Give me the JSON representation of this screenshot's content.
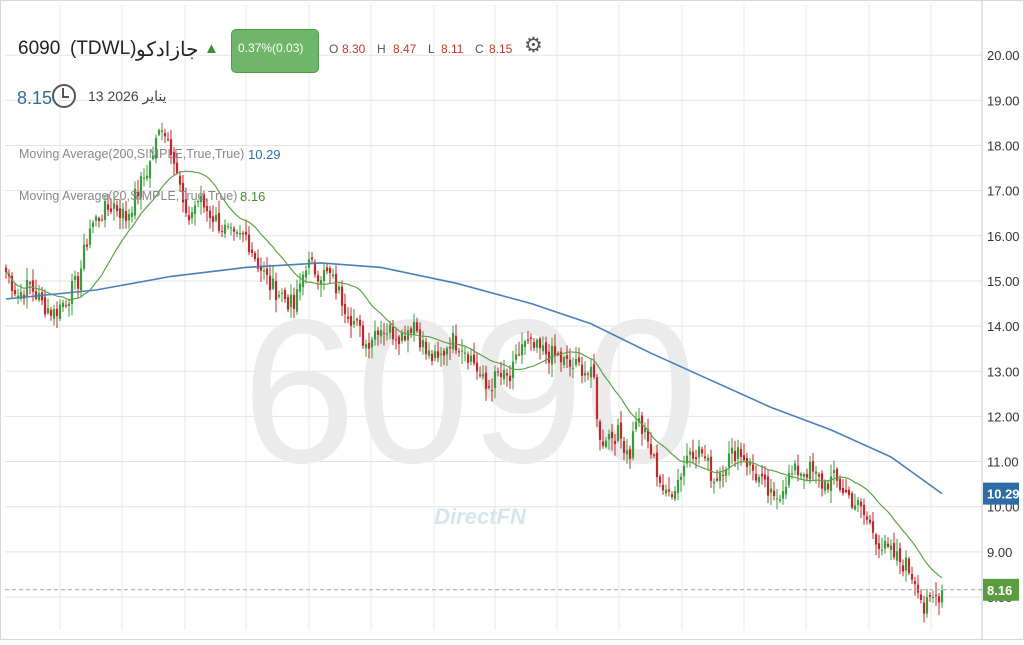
{
  "header": {
    "symbol": "6090",
    "exchange": "(TDWL)",
    "company": "جازادكو",
    "change_badge": "0.37%(0.03)",
    "ohlc": [
      {
        "key": "O",
        "value": "8.30"
      },
      {
        "key": "H",
        "value": "8.47"
      },
      {
        "key": "L",
        "value": "8.11"
      },
      {
        "key": "C",
        "value": "8.15"
      }
    ],
    "last_price": "8.15",
    "date": "13 يناير 2026"
  },
  "indicators": [
    {
      "label": "Moving Average(200,SIMPLE,True,True)",
      "value": "10.29",
      "color": "#2e6da4"
    },
    {
      "label": "Moving Average(20,SIMPLE,True,True)",
      "value": "8.16",
      "color": "#3f8f2a"
    }
  ],
  "watermark": {
    "symbol": "6090",
    "brand": "DirectFN"
  },
  "price_tags": {
    "ma200": "10.29",
    "ma20": "8.16"
  },
  "colors": {
    "up": "#3a9c3a",
    "down": "#c0282d",
    "ma200": "#4a7fb8",
    "ma20": "#5ea24a",
    "badge_bg": "#6fb56a",
    "accent_triangle": "#3a8f3a"
  },
  "chart_data": {
    "type": "candlestick",
    "y_axis_labels": [
      "20.00",
      "19.00",
      "18.00",
      "17.00",
      "16.00",
      "15.00",
      "14.00",
      "13.00",
      "12.00",
      "11.00",
      "10.00",
      "9.00",
      "8.00"
    ],
    "ylim": [
      7.4,
      20.4
    ],
    "grid": true,
    "price_anchors": [
      [
        0,
        15.2
      ],
      [
        4,
        14.7
      ],
      [
        8,
        14.9
      ],
      [
        12,
        14.5
      ],
      [
        16,
        14.3
      ],
      [
        20,
        14.6
      ],
      [
        24,
        15.0
      ],
      [
        28,
        16.2
      ],
      [
        32,
        16.5
      ],
      [
        36,
        16.7
      ],
      [
        40,
        16.4
      ],
      [
        44,
        17.0
      ],
      [
        48,
        17.6
      ],
      [
        52,
        18.5
      ],
      [
        56,
        17.8
      ],
      [
        60,
        16.3
      ],
      [
        64,
        16.8
      ],
      [
        68,
        16.5
      ],
      [
        72,
        16.2
      ],
      [
        76,
        15.9
      ],
      [
        80,
        16.0
      ],
      [
        84,
        15.4
      ],
      [
        88,
        14.9
      ],
      [
        92,
        14.7
      ],
      [
        96,
        14.4
      ],
      [
        100,
        15.4
      ],
      [
        104,
        15.2
      ],
      [
        108,
        15.1
      ],
      [
        112,
        14.6
      ],
      [
        116,
        14.1
      ],
      [
        120,
        13.6
      ],
      [
        124,
        14.0
      ],
      [
        128,
        13.9
      ],
      [
        132,
        13.8
      ],
      [
        136,
        14.1
      ],
      [
        140,
        13.4
      ],
      [
        144,
        13.2
      ],
      [
        148,
        13.7
      ],
      [
        152,
        13.6
      ],
      [
        156,
        13.2
      ],
      [
        160,
        12.6
      ],
      [
        164,
        12.9
      ],
      [
        168,
        12.8
      ],
      [
        172,
        13.6
      ],
      [
        176,
        13.5
      ],
      [
        180,
        13.4
      ],
      [
        184,
        13.3
      ],
      [
        188,
        13.1
      ],
      [
        192,
        13.1
      ],
      [
        196,
        12.8
      ],
      [
        198,
        11.4
      ],
      [
        200,
        11.6
      ],
      [
        204,
        11.6
      ],
      [
        208,
        11.2
      ],
      [
        210,
        12.0
      ],
      [
        214,
        11.4
      ],
      [
        218,
        10.6
      ],
      [
        220,
        10.2
      ],
      [
        224,
        10.6
      ],
      [
        228,
        11.3
      ],
      [
        232,
        11.2
      ],
      [
        236,
        10.6
      ],
      [
        240,
        11.0
      ],
      [
        244,
        11.3
      ],
      [
        248,
        10.9
      ],
      [
        252,
        10.5
      ],
      [
        256,
        10.1
      ],
      [
        260,
        10.6
      ],
      [
        264,
        10.8
      ],
      [
        268,
        10.8
      ],
      [
        272,
        10.5
      ],
      [
        276,
        10.6
      ],
      [
        280,
        10.3
      ],
      [
        284,
        10.0
      ],
      [
        288,
        9.6
      ],
      [
        292,
        9.1
      ],
      [
        296,
        8.9
      ],
      [
        300,
        8.7
      ],
      [
        304,
        8.3
      ],
      [
        306,
        7.7
      ],
      [
        309,
        7.95
      ],
      [
        312,
        8.15
      ]
    ],
    "last_close": 8.15,
    "series": [
      {
        "name": "Moving Average(200,SIMPLE,True,True)",
        "last_value": 10.29,
        "points": [
          [
            0,
            14.6
          ],
          [
            30,
            14.8
          ],
          [
            55,
            15.1
          ],
          [
            80,
            15.3
          ],
          [
            105,
            15.4
          ],
          [
            125,
            15.3
          ],
          [
            150,
            14.95
          ],
          [
            175,
            14.5
          ],
          [
            195,
            14.05
          ],
          [
            215,
            13.4
          ],
          [
            235,
            12.8
          ],
          [
            255,
            12.2
          ],
          [
            275,
            11.7
          ],
          [
            295,
            11.1
          ],
          [
            312,
            10.29
          ]
        ]
      },
      {
        "name": "Moving Average(20,SIMPLE,True,True)",
        "last_value": 8.16
      }
    ]
  }
}
